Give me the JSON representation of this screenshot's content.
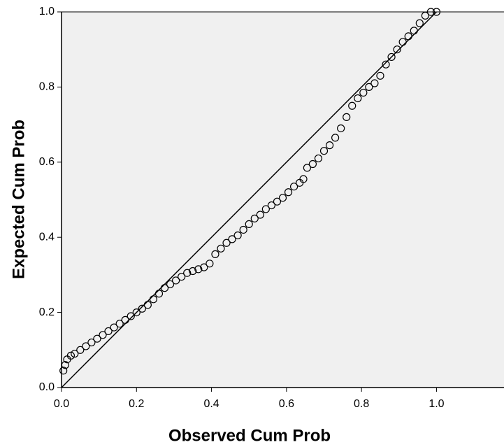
{
  "chart_data": {
    "type": "scatter",
    "x_label": "Observed Cum Prob",
    "y_label": "Expected Cum Prob",
    "xlim": [
      0,
      1.18
    ],
    "ylim": [
      0,
      1
    ],
    "xticks": [
      {
        "value": 0,
        "label": "0.0"
      },
      0.2,
      0.4,
      0.6,
      0.8,
      {
        "value": 1,
        "label": "1.0"
      }
    ],
    "yticks": [
      {
        "value": 0,
        "label": "0.0"
      },
      0.2,
      0.4,
      0.6,
      0.8,
      {
        "value": 1,
        "label": "1.0"
      }
    ],
    "color": "#000000",
    "x": [
      0.005,
      0.01,
      0.015,
      0.025,
      0.035,
      0.05,
      0.065,
      0.08,
      0.095,
      0.11,
      0.125,
      0.14,
      0.155,
      0.17,
      0.185,
      0.2,
      0.215,
      0.23,
      0.245,
      0.26,
      0.275,
      0.29,
      0.305,
      0.32,
      0.335,
      0.35,
      0.365,
      0.38,
      0.395,
      0.41,
      0.425,
      0.44,
      0.455,
      0.47,
      0.485,
      0.5,
      0.515,
      0.53,
      0.545,
      0.56,
      0.575,
      0.59,
      0.605,
      0.62,
      0.635,
      0.645,
      0.655,
      0.67,
      0.685,
      0.7,
      0.715,
      0.73,
      0.745,
      0.76,
      0.775,
      0.79,
      0.805,
      0.82,
      0.835,
      0.85,
      0.865,
      0.88,
      0.895,
      0.91,
      0.925,
      0.94,
      0.955,
      0.97,
      0.985,
      1.0
    ],
    "values": [
      0.045,
      0.06,
      0.075,
      0.085,
      0.09,
      0.1,
      0.11,
      0.12,
      0.13,
      0.14,
      0.15,
      0.16,
      0.17,
      0.18,
      0.19,
      0.2,
      0.21,
      0.22,
      0.235,
      0.25,
      0.265,
      0.275,
      0.285,
      0.295,
      0.305,
      0.31,
      0.315,
      0.32,
      0.33,
      0.355,
      0.37,
      0.385,
      0.395,
      0.405,
      0.42,
      0.435,
      0.45,
      0.46,
      0.475,
      0.485,
      0.495,
      0.505,
      0.52,
      0.535,
      0.545,
      0.555,
      0.585,
      0.595,
      0.61,
      0.63,
      0.645,
      0.665,
      0.69,
      0.72,
      0.75,
      0.77,
      0.785,
      0.8,
      0.81,
      0.83,
      0.86,
      0.88,
      0.9,
      0.92,
      0.935,
      0.95,
      0.97,
      0.99,
      1.0,
      1.0
    ]
  }
}
